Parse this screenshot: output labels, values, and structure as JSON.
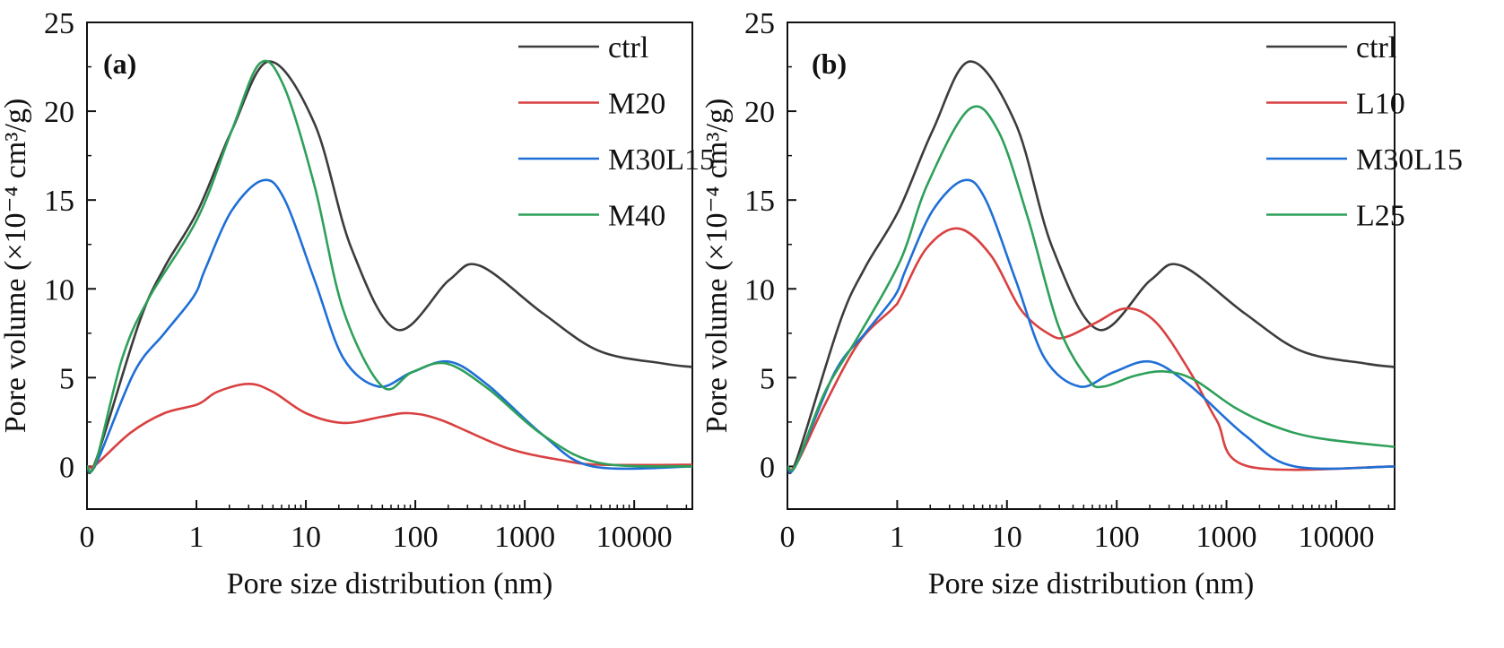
{
  "chart_data": [
    {
      "type": "line",
      "panel_label": "(a)",
      "xlabel": "Pore size distribution (nm)",
      "ylabel": "Pore volume (×10⁻⁴ cm³/g)",
      "x_scale": "log",
      "xlim": [
        0.1,
        34000
      ],
      "ylim": [
        -2.4,
        25
      ],
      "x_ticks": [
        0.1,
        1,
        10,
        100,
        1000,
        10000
      ],
      "x_tick_labels": [
        "0",
        "1",
        "10",
        "100",
        "1000",
        "10000"
      ],
      "y_ticks": [
        0,
        5,
        10,
        15,
        20,
        25
      ],
      "y_tick_labels": [
        "0",
        "5",
        "10",
        "15",
        "20",
        "25"
      ],
      "grid": false,
      "legend_position": "top-right",
      "series": [
        {
          "name": "ctrl",
          "color": "#3c3c3c",
          "x": [
            0.1,
            0.12,
            0.3,
            0.51,
            1.03,
            2.1,
            4.6,
            12,
            26,
            68,
            204,
            389,
            1480,
            4790,
            18200,
            34000
          ],
          "y": [
            0,
            0.3,
            8.1,
            11.2,
            14.4,
            18.9,
            22.8,
            19.3,
            12.3,
            7.7,
            10.5,
            11.3,
            8.6,
            6.5,
            5.8,
            5.6
          ]
        },
        {
          "name": "M20",
          "color": "#d94141",
          "x": [
            0.1,
            0.12,
            0.25,
            0.51,
            1.03,
            1.55,
            3.0,
            5.0,
            10,
            22,
            50,
            87,
            174,
            676,
            2190,
            4790,
            34000
          ],
          "y": [
            0,
            0.1,
            1.9,
            3.0,
            3.5,
            4.2,
            4.65,
            4.2,
            3.0,
            2.45,
            2.8,
            3.0,
            2.6,
            1.05,
            0.35,
            0.1,
            0.1
          ]
        },
        {
          "name": "M30L15",
          "color": "#1f6fd6",
          "x": [
            0.1,
            0.12,
            0.27,
            0.51,
            0.95,
            1.2,
            2.1,
            4.0,
            6.3,
            12,
            22,
            46,
            93,
            204,
            457,
            1480,
            4170,
            34000
          ],
          "y": [
            0,
            0.1,
            5.3,
            7.5,
            9.6,
            11.1,
            14.4,
            16.1,
            15.1,
            10.5,
            6.1,
            4.5,
            5.3,
            5.9,
            4.6,
            1.75,
            0,
            0
          ]
        },
        {
          "name": "M40",
          "color": "#2ea05a",
          "x": [
            0.1,
            0.12,
            0.21,
            0.37,
            1.03,
            2.1,
            3.8,
            6.3,
            12,
            22,
            50,
            93,
            191,
            457,
            1480,
            4790,
            34000
          ],
          "y": [
            0,
            0.2,
            6.1,
            9.5,
            14.0,
            18.9,
            22.7,
            21.4,
            15.8,
            8.8,
            4.5,
            5.3,
            5.8,
            4.4,
            1.75,
            0.2,
            0
          ]
        }
      ]
    },
    {
      "type": "line",
      "panel_label": "(b)",
      "xlabel": "Pore size distribution (nm)",
      "ylabel": "Pore volume (×10⁻⁴ cm³/g)",
      "x_scale": "log",
      "xlim": [
        0.1,
        34000
      ],
      "ylim": [
        -2.4,
        25
      ],
      "x_ticks": [
        0.1,
        1,
        10,
        100,
        1000,
        10000
      ],
      "x_tick_labels": [
        "0",
        "1",
        "10",
        "100",
        "1000",
        "10000"
      ],
      "y_ticks": [
        0,
        5,
        10,
        15,
        20,
        25
      ],
      "y_tick_labels": [
        "0",
        "5",
        "10",
        "15",
        "20",
        "25"
      ],
      "grid": false,
      "legend_position": "top-right",
      "series": [
        {
          "name": "ctrl",
          "color": "#3c3c3c",
          "x": [
            0.1,
            0.12,
            0.3,
            0.51,
            1.03,
            2.1,
            4.6,
            12,
            26,
            68,
            204,
            389,
            1480,
            4790,
            18200,
            34000
          ],
          "y": [
            0,
            0.3,
            8.1,
            11.2,
            14.4,
            18.9,
            22.8,
            19.3,
            12.3,
            7.7,
            10.5,
            11.3,
            8.6,
            6.5,
            5.8,
            5.6
          ]
        },
        {
          "name": "L10",
          "color": "#d94141",
          "x": [
            0.1,
            0.12,
            0.22,
            0.45,
            0.91,
            1.07,
            1.86,
            3.6,
            7.1,
            13.5,
            25,
            35,
            65,
            123,
            229,
            468,
            813,
            1585,
            34000
          ],
          "y": [
            0,
            0.1,
            3.5,
            7.0,
            8.9,
            9.5,
            12.3,
            13.4,
            11.9,
            8.8,
            7.4,
            7.3,
            8.1,
            8.9,
            8.1,
            5.3,
            2.6,
            0,
            0
          ]
        },
        {
          "name": "M30L15",
          "color": "#1f6fd6",
          "x": [
            0.1,
            0.12,
            0.27,
            0.51,
            0.95,
            1.2,
            2.1,
            4.0,
            6.3,
            12,
            22,
            46,
            93,
            204,
            457,
            1480,
            4170,
            34000
          ],
          "y": [
            0,
            0.1,
            5.3,
            7.5,
            9.6,
            11.1,
            14.4,
            16.1,
            15.1,
            10.5,
            6.1,
            4.5,
            5.3,
            5.9,
            4.6,
            1.75,
            0,
            0
          ]
        },
        {
          "name": "L25",
          "color": "#2ea05a",
          "x": [
            0.1,
            0.12,
            0.22,
            0.45,
            1.07,
            1.86,
            4.5,
            8.3,
            15.5,
            29.5,
            55,
            76,
            145,
            269,
            501,
            1200,
            2630,
            6760,
            34000
          ],
          "y": [
            0,
            0.1,
            4.2,
            7.4,
            11.6,
            15.8,
            20.1,
            18.9,
            14.0,
            7.9,
            4.9,
            4.5,
            5.1,
            5.35,
            4.9,
            3.3,
            2.3,
            1.6,
            1.1
          ]
        }
      ]
    }
  ]
}
